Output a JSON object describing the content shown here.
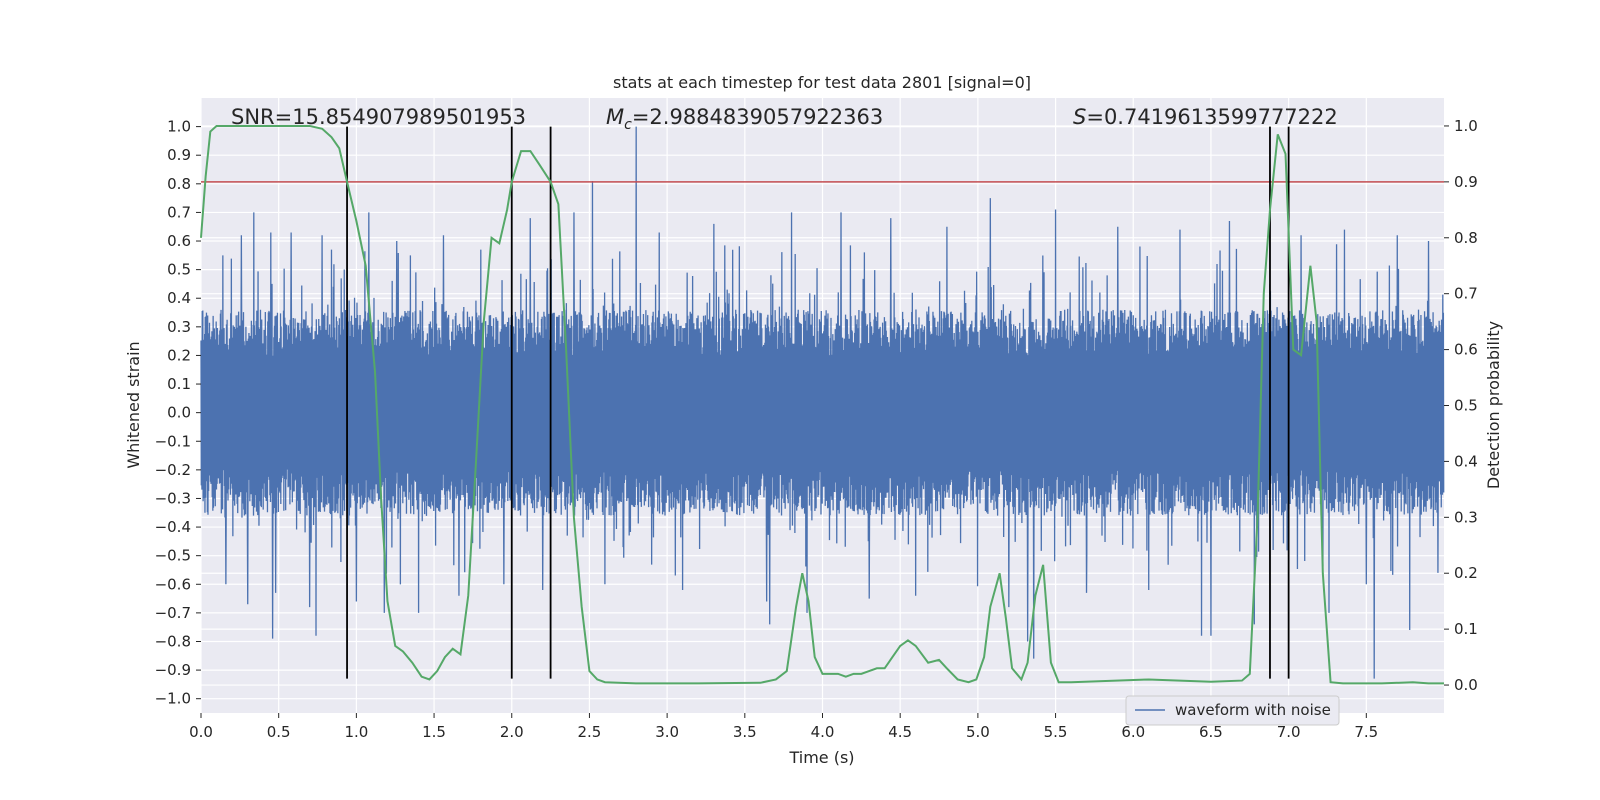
{
  "chart_data": {
    "type": "line",
    "title": "stats at each timestep for test data 2801 [signal=0]",
    "xlabel": "Time (s)",
    "ylabel_left": "Whitened strain",
    "ylabel_right": "Detection probability",
    "xlim": [
      0.0,
      8.0
    ],
    "ylim_left": [
      -1.05,
      1.1
    ],
    "ylim_right": [
      -0.05,
      1.05
    ],
    "x_ticks": [
      0.0,
      0.5,
      1.0,
      1.5,
      2.0,
      2.5,
      3.0,
      3.5,
      4.0,
      4.5,
      5.0,
      5.5,
      6.0,
      6.5,
      7.0,
      7.5
    ],
    "x_tick_labels": [
      "0.0",
      "0.5",
      "1.0",
      "1.5",
      "2.0",
      "2.5",
      "3.0",
      "3.5",
      "4.0",
      "4.5",
      "5.0",
      "5.5",
      "6.0",
      "6.5",
      "7.0",
      "7.5"
    ],
    "y_left_ticks": [
      1.0,
      0.9,
      0.8,
      0.7,
      0.6,
      0.5,
      0.4,
      0.3,
      0.2,
      0.1,
      0.0,
      -0.1,
      -0.2,
      -0.3,
      -0.4,
      -0.5,
      -0.6,
      -0.7,
      -0.8,
      -0.9,
      -1.0
    ],
    "y_left_tick_labels": [
      "1.0",
      "0.9",
      "0.8",
      "0.7",
      "0.6",
      "0.5",
      "0.4",
      "0.3",
      "0.2",
      "0.1",
      "0.0",
      "−0.1",
      "−0.2",
      "−0.3",
      "−0.4",
      "−0.5",
      "−0.6",
      "−0.7",
      "−0.8",
      "−0.9",
      "−1.0"
    ],
    "y_right_ticks": [
      1.0,
      0.9,
      0.8,
      0.7,
      0.6,
      0.5,
      0.4,
      0.3,
      0.2,
      0.1,
      0.0
    ],
    "y_right_tick_labels": [
      "1.0",
      "0.9",
      "0.8",
      "0.7",
      "0.6",
      "0.5",
      "0.4",
      "0.3",
      "0.2",
      "0.1",
      "0.0"
    ],
    "grid": true,
    "annotations": {
      "snr": "SNR=15.854907989501953",
      "mc_symbol": "M",
      "mc_subscript": "c",
      "mc_value": "=2.9884839057922363",
      "s_symbol": "S",
      "s_value": "=0.7419613599777222"
    },
    "threshold": {
      "value_right": 0.9,
      "color": "#c44e52"
    },
    "vertical_lines": [
      0.94,
      2.0,
      2.25,
      6.88,
      7.0
    ],
    "vline_range_left": [
      -0.93,
      1.0
    ],
    "legend": {
      "label": "waveform with noise",
      "placement": "lower-right"
    },
    "waveform": {
      "name": "waveform with noise",
      "color": "#4c72b0",
      "sample_rate": 512,
      "band_core": 0.36,
      "spikes": [
        {
          "x": 0.14,
          "y": 0.55
        },
        {
          "x": 0.16,
          "y": -0.6
        },
        {
          "x": 0.26,
          "y": 0.62
        },
        {
          "x": 0.3,
          "y": -0.67
        },
        {
          "x": 0.34,
          "y": 0.7
        },
        {
          "x": 0.45,
          "y": 0.63
        },
        {
          "x": 0.48,
          "y": -0.63
        },
        {
          "x": 0.46,
          "y": -0.79
        },
        {
          "x": 0.58,
          "y": 0.63
        },
        {
          "x": 0.7,
          "y": -0.68
        },
        {
          "x": 0.74,
          "y": -0.78
        },
        {
          "x": 0.78,
          "y": 0.62
        },
        {
          "x": 0.84,
          "y": 0.57
        },
        {
          "x": 1.0,
          "y": -0.66
        },
        {
          "x": 1.08,
          "y": 0.7
        },
        {
          "x": 1.18,
          "y": -0.7
        },
        {
          "x": 1.26,
          "y": 0.6
        },
        {
          "x": 1.4,
          "y": -0.7
        },
        {
          "x": 1.56,
          "y": 0.62
        },
        {
          "x": 1.66,
          "y": -0.64
        },
        {
          "x": 1.8,
          "y": 0.57
        },
        {
          "x": 1.95,
          "y": -0.6
        },
        {
          "x": 2.12,
          "y": 0.68
        },
        {
          "x": 2.2,
          "y": -0.62
        },
        {
          "x": 2.4,
          "y": 0.7
        },
        {
          "x": 2.52,
          "y": 0.81
        },
        {
          "x": 2.6,
          "y": -0.6
        },
        {
          "x": 2.8,
          "y": 1.0
        },
        {
          "x": 2.95,
          "y": 0.63
        },
        {
          "x": 3.1,
          "y": -0.62
        },
        {
          "x": 3.3,
          "y": 0.66
        },
        {
          "x": 3.64,
          "y": -0.66
        },
        {
          "x": 3.66,
          "y": -0.74
        },
        {
          "x": 3.8,
          "y": 0.7
        },
        {
          "x": 3.9,
          "y": -0.7
        },
        {
          "x": 4.12,
          "y": 0.7
        },
        {
          "x": 4.3,
          "y": -0.65
        },
        {
          "x": 4.44,
          "y": 0.68
        },
        {
          "x": 4.6,
          "y": -0.64
        },
        {
          "x": 4.8,
          "y": 0.65
        },
        {
          "x": 5.08,
          "y": 0.75
        },
        {
          "x": 5.2,
          "y": -0.68
        },
        {
          "x": 5.32,
          "y": -0.8
        },
        {
          "x": 5.36,
          "y": -0.86
        },
        {
          "x": 5.5,
          "y": 0.71
        },
        {
          "x": 5.7,
          "y": -0.63
        },
        {
          "x": 5.9,
          "y": 0.65
        },
        {
          "x": 6.1,
          "y": -0.62
        },
        {
          "x": 6.3,
          "y": 0.64
        },
        {
          "x": 6.44,
          "y": -0.78
        },
        {
          "x": 6.5,
          "y": -0.78
        },
        {
          "x": 6.62,
          "y": 0.67
        },
        {
          "x": 6.78,
          "y": -0.74
        },
        {
          "x": 6.9,
          "y": -0.48
        },
        {
          "x": 7.08,
          "y": 0.62
        },
        {
          "x": 7.26,
          "y": -0.7
        },
        {
          "x": 7.36,
          "y": 0.64
        },
        {
          "x": 7.5,
          "y": -0.6
        },
        {
          "x": 7.55,
          "y": -0.93
        },
        {
          "x": 7.7,
          "y": 0.62
        },
        {
          "x": 7.78,
          "y": -0.76
        },
        {
          "x": 7.9,
          "y": 0.6
        },
        {
          "x": 7.96,
          "y": -0.56
        }
      ]
    },
    "probability": {
      "name": "detection probability",
      "color": "#55a868",
      "points": [
        [
          0.0,
          0.8
        ],
        [
          0.03,
          0.91
        ],
        [
          0.06,
          0.99
        ],
        [
          0.1,
          1.0
        ],
        [
          0.2,
          1.0
        ],
        [
          0.4,
          1.0
        ],
        [
          0.6,
          1.0
        ],
        [
          0.7,
          1.0
        ],
        [
          0.78,
          0.995
        ],
        [
          0.84,
          0.98
        ],
        [
          0.89,
          0.96
        ],
        [
          0.94,
          0.9
        ],
        [
          1.0,
          0.83
        ],
        [
          1.06,
          0.75
        ],
        [
          1.12,
          0.56
        ],
        [
          1.16,
          0.33
        ],
        [
          1.2,
          0.15
        ],
        [
          1.25,
          0.07
        ],
        [
          1.3,
          0.06
        ],
        [
          1.36,
          0.04
        ],
        [
          1.42,
          0.015
        ],
        [
          1.47,
          0.01
        ],
        [
          1.52,
          0.025
        ],
        [
          1.57,
          0.05
        ],
        [
          1.62,
          0.065
        ],
        [
          1.67,
          0.055
        ],
        [
          1.72,
          0.16
        ],
        [
          1.77,
          0.4
        ],
        [
          1.82,
          0.65
        ],
        [
          1.87,
          0.8
        ],
        [
          1.92,
          0.79
        ],
        [
          1.97,
          0.85
        ],
        [
          2.0,
          0.9
        ],
        [
          2.06,
          0.955
        ],
        [
          2.12,
          0.955
        ],
        [
          2.18,
          0.93
        ],
        [
          2.25,
          0.9
        ],
        [
          2.3,
          0.86
        ],
        [
          2.35,
          0.6
        ],
        [
          2.4,
          0.3
        ],
        [
          2.45,
          0.14
        ],
        [
          2.5,
          0.025
        ],
        [
          2.55,
          0.01
        ],
        [
          2.6,
          0.005
        ],
        [
          2.8,
          0.003
        ],
        [
          3.2,
          0.003
        ],
        [
          3.6,
          0.004
        ],
        [
          3.7,
          0.01
        ],
        [
          3.77,
          0.025
        ],
        [
          3.83,
          0.14
        ],
        [
          3.87,
          0.2
        ],
        [
          3.91,
          0.15
        ],
        [
          3.95,
          0.05
        ],
        [
          4.0,
          0.02
        ],
        [
          4.1,
          0.02
        ],
        [
          4.15,
          0.015
        ],
        [
          4.2,
          0.02
        ],
        [
          4.25,
          0.02
        ],
        [
          4.3,
          0.025
        ],
        [
          4.35,
          0.03
        ],
        [
          4.4,
          0.03
        ],
        [
          4.45,
          0.05
        ],
        [
          4.5,
          0.07
        ],
        [
          4.55,
          0.08
        ],
        [
          4.6,
          0.07
        ],
        [
          4.68,
          0.04
        ],
        [
          4.75,
          0.045
        ],
        [
          4.8,
          0.03
        ],
        [
          4.87,
          0.01
        ],
        [
          4.94,
          0.005
        ],
        [
          4.99,
          0.01
        ],
        [
          5.04,
          0.05
        ],
        [
          5.08,
          0.14
        ],
        [
          5.14,
          0.2
        ],
        [
          5.18,
          0.12
        ],
        [
          5.22,
          0.03
        ],
        [
          5.28,
          0.01
        ],
        [
          5.32,
          0.04
        ],
        [
          5.37,
          0.16
        ],
        [
          5.42,
          0.215
        ],
        [
          5.47,
          0.04
        ],
        [
          5.52,
          0.005
        ],
        [
          5.6,
          0.005
        ],
        [
          5.8,
          0.007
        ],
        [
          6.1,
          0.01
        ],
        [
          6.3,
          0.008
        ],
        [
          6.5,
          0.006
        ],
        [
          6.7,
          0.008
        ],
        [
          6.75,
          0.02
        ],
        [
          6.8,
          0.3
        ],
        [
          6.84,
          0.7
        ],
        [
          6.88,
          0.85
        ],
        [
          6.93,
          0.985
        ],
        [
          6.98,
          0.95
        ],
        [
          7.03,
          0.6
        ],
        [
          7.08,
          0.59
        ],
        [
          7.14,
          0.75
        ],
        [
          7.18,
          0.65
        ],
        [
          7.22,
          0.2
        ],
        [
          7.27,
          0.005
        ],
        [
          7.35,
          0.003
        ],
        [
          7.6,
          0.003
        ],
        [
          7.8,
          0.005
        ],
        [
          7.9,
          0.003
        ],
        [
          8.0,
          0.003
        ]
      ]
    }
  }
}
